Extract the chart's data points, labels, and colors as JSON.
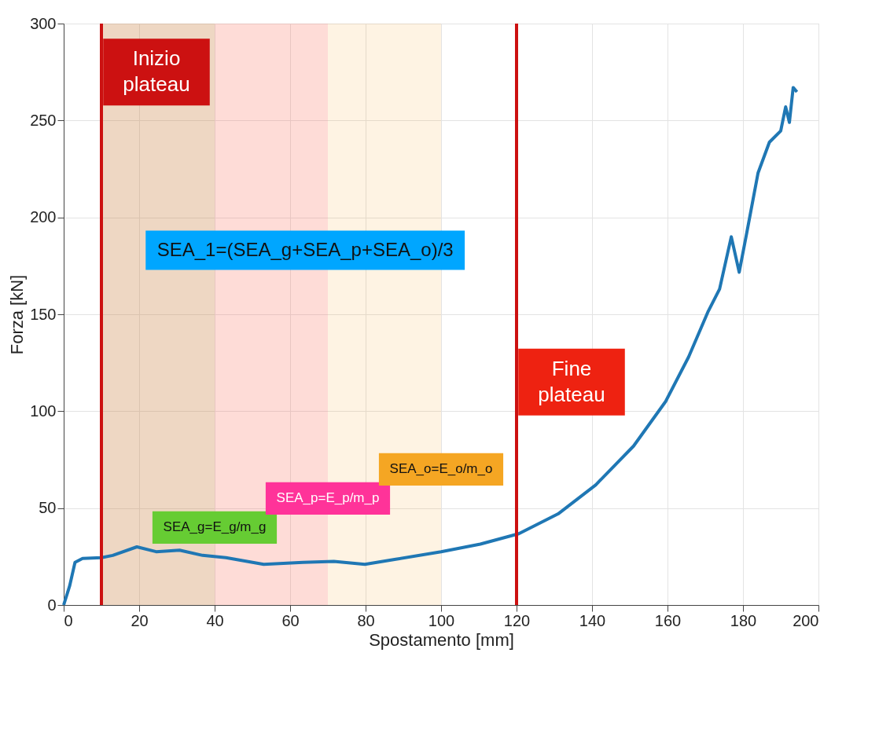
{
  "chart_data": {
    "type": "line",
    "xlabel": "Spostamento [mm]",
    "ylabel": "Forza [kN]",
    "xlim": [
      0,
      200
    ],
    "ylim": [
      0,
      300
    ],
    "xticks": [
      0,
      20,
      40,
      60,
      80,
      100,
      120,
      140,
      160,
      180,
      200
    ],
    "yticks": [
      0,
      50,
      100,
      150,
      200,
      250,
      300
    ],
    "grid": true,
    "line_style": "solid",
    "marker": "none",
    "series": [
      {
        "color": "#1f77b4",
        "x": [
          0,
          1.6,
          3,
          5,
          10,
          13,
          19.4,
          24.5,
          30.7,
          36.8,
          43,
          53,
          63.4,
          71.6,
          79.8,
          88,
          100,
          110.4,
          120.6,
          131,
          141,
          151,
          159.5,
          165.6,
          170.8,
          173.8,
          176.9,
          179,
          181,
          184,
          187,
          190,
          191.3,
          192.3,
          193.3,
          194.3
        ],
        "values": [
          0,
          10,
          22,
          24,
          24.4,
          25.6,
          30,
          27.5,
          28.3,
          25.6,
          24.4,
          21,
          22,
          22.5,
          21,
          23.6,
          27.5,
          31.4,
          36.8,
          47,
          62,
          82,
          105,
          128,
          151.6,
          163,
          190,
          171.7,
          192,
          223,
          238.8,
          244.6,
          257,
          249,
          267,
          264.7
        ]
      }
    ],
    "bands": [
      {
        "axis": "x",
        "from": 10,
        "to": 40,
        "label": "SEA_g=E_g/m_g",
        "color": "#66cc33"
      },
      {
        "axis": "x",
        "from": 10,
        "to": 70,
        "label": "SEA_p=E_p/m_p",
        "color": "#ff3399"
      },
      {
        "axis": "x",
        "from": 10,
        "to": 100,
        "label": "SEA_o=E_o/m_o",
        "color": "#f5a623"
      }
    ],
    "ref_lines": [
      {
        "axis": "x",
        "value": 10,
        "label": "Inizio plateau",
        "color": "#cc1111"
      },
      {
        "axis": "x",
        "value": 120,
        "label": "Fine plateau",
        "color": "#cc1111"
      }
    ],
    "annotations": [
      "SEA_1=(SEA_g+SEA_p+SEA_o)/3"
    ]
  }
}
